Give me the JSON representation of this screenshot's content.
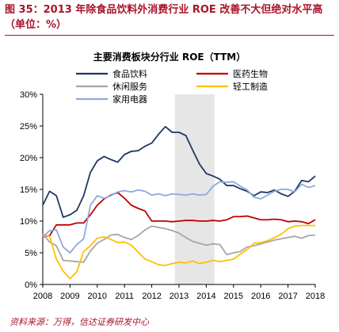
{
  "caption": "图 35：2013 年除食品饮料外消费行业 ROE 改善不大但绝对水平高（单位：%）",
  "source": "资料来源：万得，信达证券研发中心",
  "chart_data": {
    "type": "line",
    "title": "主要消费板块分行业 ROE（TTM）",
    "xlabel": "",
    "ylabel": "",
    "ylim": [
      0,
      30
    ],
    "yticks": [
      "0%",
      "5%",
      "10%",
      "15%",
      "20%",
      "25%",
      "30%"
    ],
    "xlim": [
      2008,
      2018
    ],
    "xticks": [
      "2008",
      "2009",
      "2010",
      "2011",
      "2012",
      "2013",
      "2014",
      "2015",
      "2016",
      "2017",
      "2018"
    ],
    "shaded_region": [
      2012.85,
      2014.3
    ],
    "shaded_color": "#e6e6e6",
    "legend_position": "top",
    "grid": false,
    "series": [
      {
        "name": "食品饮料",
        "color": "#1f3864",
        "x": [
          2008,
          2008.25,
          2008.5,
          2008.75,
          2009,
          2009.25,
          2009.5,
          2009.75,
          2010,
          2010.25,
          2010.5,
          2010.75,
          2011,
          2011.25,
          2011.5,
          2011.75,
          2012,
          2012.25,
          2012.5,
          2012.75,
          2013,
          2013.25,
          2013.5,
          2013.75,
          2014,
          2014.25,
          2014.5,
          2014.75,
          2015,
          2015.25,
          2015.5,
          2015.75,
          2016,
          2016.25,
          2016.5,
          2016.75,
          2017,
          2017.25,
          2017.5,
          2017.75,
          2018
        ],
        "values": [
          12.5,
          14.7,
          14.0,
          10.6,
          11.0,
          11.7,
          14.0,
          17.7,
          19.5,
          20.2,
          19.7,
          19.3,
          20.5,
          21.0,
          21.1,
          21.8,
          22.3,
          23.7,
          24.9,
          24.0,
          24.0,
          23.5,
          21.2,
          19.0,
          17.5,
          17.1,
          16.6,
          15.6,
          15.6,
          15.1,
          14.7,
          14.0,
          14.6,
          14.5,
          14.9,
          14.3,
          13.9,
          14.7,
          16.4,
          16.2,
          17.1
        ]
      },
      {
        "name": "医药生物",
        "color": "#c00000",
        "x": [
          2008,
          2008.25,
          2008.5,
          2008.75,
          2009,
          2009.25,
          2009.5,
          2009.75,
          2010,
          2010.25,
          2010.5,
          2010.75,
          2011,
          2011.25,
          2011.5,
          2011.75,
          2012,
          2012.25,
          2012.5,
          2012.75,
          2013,
          2013.25,
          2013.5,
          2013.75,
          2014,
          2014.25,
          2014.5,
          2014.75,
          2015,
          2015.25,
          2015.5,
          2015.75,
          2016,
          2016.25,
          2016.5,
          2016.75,
          2017,
          2017.25,
          2017.5,
          2017.75,
          2018
        ],
        "values": [
          7.5,
          7.7,
          9.4,
          9.4,
          9.4,
          9.7,
          9.7,
          11.0,
          12.5,
          13.5,
          14.1,
          14.5,
          13.6,
          12.5,
          12.0,
          11.6,
          10.0,
          10.0,
          10.0,
          9.9,
          10.0,
          10.1,
          10.1,
          10.0,
          10.0,
          10.1,
          10.0,
          10.2,
          10.7,
          10.7,
          10.8,
          10.5,
          10.2,
          10.2,
          10.3,
          10.2,
          9.9,
          10.0,
          9.9,
          9.6,
          10.2
        ]
      },
      {
        "name": "休闲服务",
        "color": "#a6a6a6",
        "x": [
          2008,
          2008.25,
          2008.5,
          2008.75,
          2009,
          2009.25,
          2009.5,
          2009.75,
          2010,
          2010.25,
          2010.5,
          2010.75,
          2011,
          2011.25,
          2011.5,
          2011.75,
          2012,
          2012.25,
          2012.5,
          2012.75,
          2013,
          2013.25,
          2013.5,
          2013.75,
          2014,
          2014.25,
          2014.5,
          2014.75,
          2015,
          2015.25,
          2015.5,
          2015.75,
          2016,
          2016.25,
          2016.5,
          2016.75,
          2017,
          2017.25,
          2017.5,
          2017.75,
          2018
        ],
        "values": [
          8.0,
          6.7,
          6.1,
          3.8,
          3.7,
          3.6,
          3.5,
          5.3,
          6.5,
          7.1,
          7.8,
          7.9,
          7.4,
          7.1,
          7.7,
          8.6,
          9.2,
          9.0,
          8.8,
          8.5,
          8.1,
          7.4,
          6.8,
          6.5,
          6.2,
          6.4,
          6.3,
          4.7,
          5.0,
          5.2,
          5.9,
          6.1,
          6.4,
          6.7,
          7.0,
          7.2,
          7.4,
          7.6,
          7.3,
          7.7,
          7.8
        ]
      },
      {
        "name": "轻工制造",
        "color": "#ffc000",
        "x": [
          2008,
          2008.25,
          2008.5,
          2008.75,
          2009,
          2009.25,
          2009.5,
          2009.75,
          2010,
          2010.25,
          2010.5,
          2010.75,
          2011,
          2011.25,
          2011.5,
          2011.75,
          2012,
          2012.25,
          2012.5,
          2012.75,
          2013,
          2013.25,
          2013.5,
          2013.75,
          2014,
          2014.25,
          2014.5,
          2014.75,
          2015,
          2015.25,
          2015.5,
          2015.75,
          2016,
          2016.25,
          2016.5,
          2016.75,
          2017,
          2017.25,
          2017.5,
          2017.75,
          2018
        ],
        "values": [
          7.8,
          7.6,
          4.0,
          2.1,
          0.9,
          2.0,
          5.2,
          6.1,
          7.3,
          7.5,
          7.1,
          6.6,
          6.7,
          6.2,
          5.1,
          4.0,
          3.6,
          3.1,
          3.0,
          3.3,
          3.5,
          3.4,
          3.7,
          3.3,
          3.5,
          3.8,
          3.6,
          3.8,
          4.0,
          4.8,
          5.5,
          6.5,
          6.6,
          6.9,
          7.4,
          7.9,
          8.8,
          9.2,
          9.3,
          9.3,
          9.3
        ]
      },
      {
        "name": "家用电器",
        "color": "#8ea9db",
        "x": [
          2008,
          2008.25,
          2008.5,
          2008.75,
          2009,
          2009.25,
          2009.5,
          2009.75,
          2010,
          2010.25,
          2010.5,
          2010.75,
          2011,
          2011.25,
          2011.5,
          2011.75,
          2012,
          2012.25,
          2012.5,
          2012.75,
          2013,
          2013.25,
          2013.5,
          2013.75,
          2014,
          2014.25,
          2014.5,
          2014.75,
          2015,
          2015.25,
          2015.5,
          2015.75,
          2016,
          2016.25,
          2016.5,
          2016.75,
          2017,
          2017.25,
          2017.5,
          2017.75,
          2018
        ],
        "values": [
          7.5,
          8.5,
          8.6,
          5.9,
          5.0,
          6.3,
          7.2,
          12.5,
          14.0,
          13.6,
          14.0,
          14.6,
          14.8,
          14.6,
          14.9,
          14.7,
          14.1,
          14.3,
          14.0,
          14.3,
          14.2,
          14.1,
          14.3,
          14.1,
          14.2,
          15.5,
          16.2,
          16.1,
          16.2,
          15.5,
          14.9,
          13.8,
          13.5,
          14.1,
          14.7,
          15.0,
          15.0,
          14.6,
          15.8,
          15.3,
          15.6
        ]
      }
    ]
  }
}
